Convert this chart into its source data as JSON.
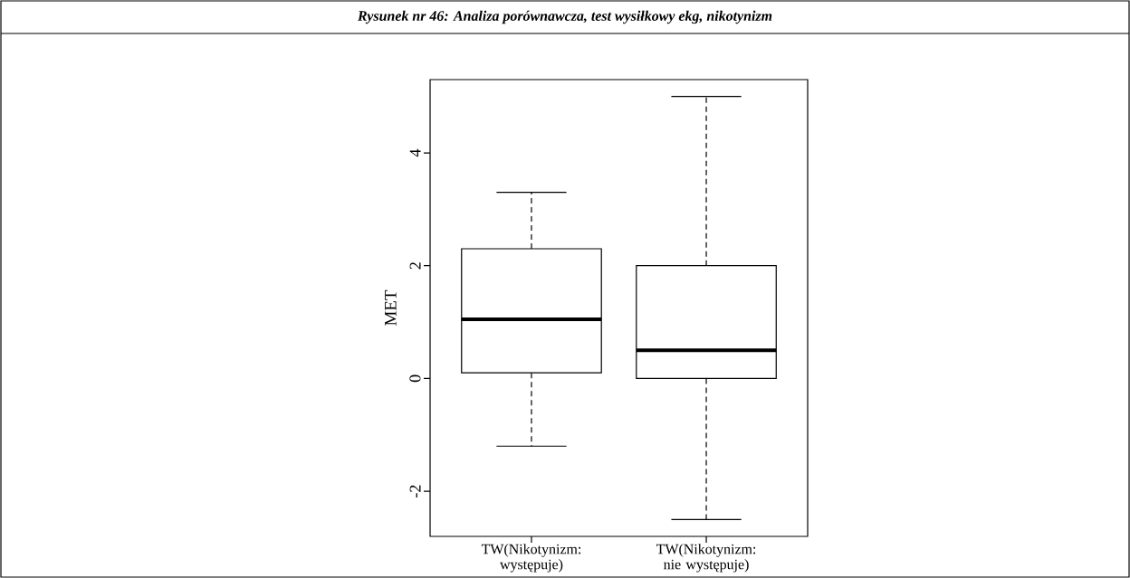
{
  "chart_data": {
    "type": "box",
    "title": "Rysunek nr 46: Analiza porównawcza, test wysiłkowy ekg, nikotynizm",
    "ylabel": "MET",
    "categories": [
      "TW(Nikotynizm: występuje)",
      "TW(Nikotynizm: nie występuje)"
    ],
    "boxes": [
      {
        "low": -1.2,
        "q1": 0.1,
        "median": 1.05,
        "q3": 2.3,
        "high": 3.3
      },
      {
        "low": -2.5,
        "q1": 0,
        "median": 0.5,
        "q3": 2,
        "high": 5
      }
    ],
    "ylim": [
      -2.8,
      5.3
    ],
    "yticks": [
      -2,
      0,
      2,
      4
    ]
  }
}
